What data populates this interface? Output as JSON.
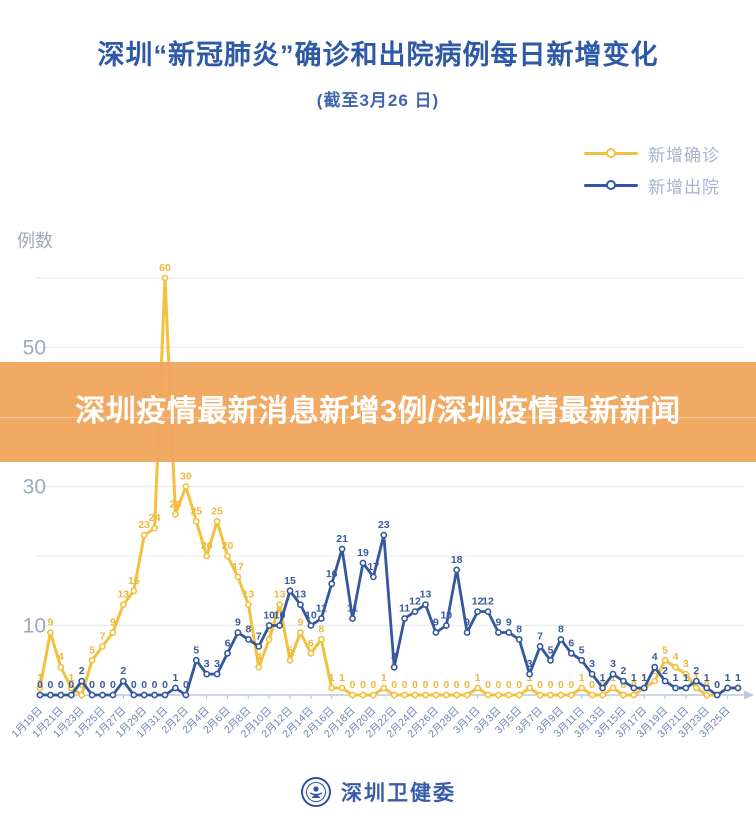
{
  "page": {
    "title": "深圳“新冠肺炎”确诊和出院病例每日新增变化",
    "subtitle": "(截至3月26 日)"
  },
  "banner": {
    "text": "深圳疫情最新消息新增3例/深圳疫情最新新闻",
    "bg_color": "#F1A75F",
    "text_color": "#FFFFFF"
  },
  "footer": {
    "org_name": "深圳卫健委"
  },
  "colors": {
    "title_blue": "#2E59A7",
    "confirmed_yellow": "#F2C13D",
    "discharged_blue": "#33589D",
    "legend_text": "#A6B2D0",
    "axis_text": "#7286B5",
    "y_axis_text": "#9FA8BE",
    "gridline": "#ECEDF1",
    "axis_line": "#BCC8DE"
  },
  "chart_data": {
    "type": "line",
    "title": "深圳“新冠肺炎”确诊和出院病例每日新增变化",
    "subtitle": "(截至3月26 日)",
    "ylabel": "例数",
    "xlabel": "",
    "ylim": [
      0,
      62
    ],
    "y_gridlines": [
      10,
      20,
      30,
      40,
      50,
      60
    ],
    "y_tick_labels": [
      10,
      30,
      50
    ],
    "grid": true,
    "legend_position": "top-right",
    "point_labels": true,
    "x_tick_every": 2,
    "x": [
      "1月19日",
      "1月20日",
      "1月21日",
      "1月22日",
      "1月23日",
      "1月24日",
      "1月25日",
      "1月26日",
      "1月27日",
      "1月28日",
      "1月29日",
      "1月30日",
      "1月31日",
      "2月1日",
      "2月2日",
      "2月3日",
      "2月4日",
      "2月5日",
      "2月6日",
      "2月7日",
      "2月8日",
      "2月9日",
      "2月10日",
      "2月11日",
      "2月12日",
      "2月13日",
      "2月14日",
      "2月15日",
      "2月16日",
      "2月17日",
      "2月18日",
      "2月19日",
      "2月20日",
      "2月21日",
      "2月22日",
      "2月23日",
      "2月24日",
      "2月25日",
      "2月26日",
      "2月27日",
      "2月28日",
      "2月29日",
      "3月1日",
      "3月2日",
      "3月3日",
      "3月4日",
      "3月5日",
      "3月6日",
      "3月7日",
      "3月8日",
      "3月9日",
      "3月10日",
      "3月11日",
      "3月12日",
      "3月13日",
      "3月14日",
      "3月15日",
      "3月16日",
      "3月17日",
      "3月18日",
      "3月19日",
      "3月20日",
      "3月21日",
      "3月22日",
      "3月23日",
      "3月24日",
      "3月25日",
      "3月26日"
    ],
    "series": [
      {
        "name": "新增确诊",
        "color": "#F2C13D",
        "label_color": "#EDB83D",
        "values": [
          1,
          9,
          4,
          1,
          0,
          5,
          7,
          9,
          13,
          15,
          23,
          24,
          60,
          26,
          30,
          25,
          20,
          25,
          20,
          17,
          13,
          4,
          8,
          13,
          5,
          9,
          6,
          8,
          1,
          1,
          0,
          0,
          0,
          1,
          0,
          0,
          0,
          0,
          0,
          0,
          0,
          0,
          1,
          0,
          0,
          0,
          0,
          1,
          0,
          0,
          0,
          0,
          1,
          0,
          0,
          1,
          0,
          0,
          1,
          2,
          5,
          4,
          3,
          1,
          0,
          0,
          1,
          1
        ]
      },
      {
        "name": "新增出院",
        "color": "#33589D",
        "label_color": "#3A5A9E",
        "values": [
          0,
          0,
          0,
          0,
          2,
          0,
          0,
          0,
          2,
          0,
          0,
          0,
          0,
          1,
          0,
          5,
          3,
          3,
          6,
          9,
          8,
          7,
          10,
          10,
          15,
          13,
          10,
          11,
          16,
          21,
          11,
          19,
          17,
          23,
          4,
          11,
          12,
          13,
          9,
          10,
          18,
          9,
          12,
          12,
          9,
          9,
          8,
          3,
          7,
          5,
          8,
          6,
          5,
          3,
          1,
          3,
          2,
          1,
          1,
          4,
          2,
          1,
          1,
          2,
          1,
          0,
          1,
          1
        ]
      }
    ]
  }
}
